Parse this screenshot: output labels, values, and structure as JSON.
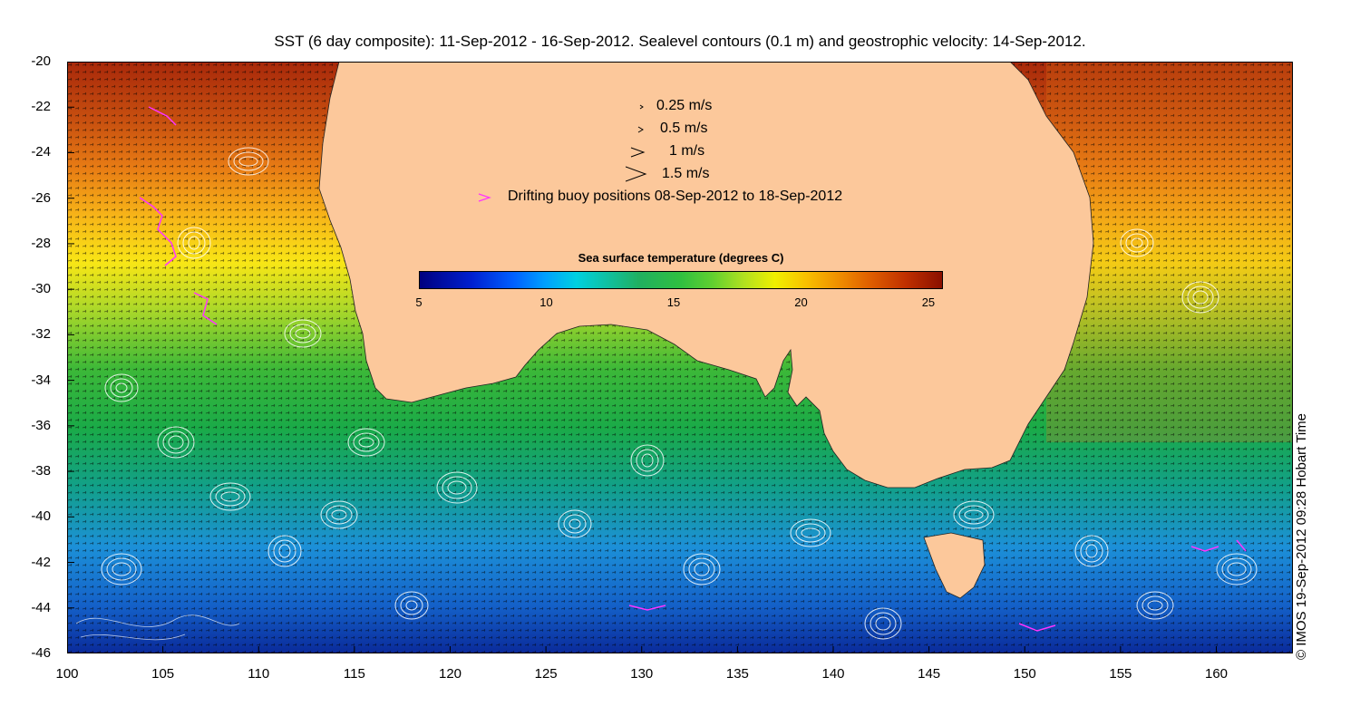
{
  "title": "SST (6 day composite): 11-Sep-2012 - 16-Sep-2012. Sealevel contours (0.1 m) and geostrophic velocity: 14-Sep-2012.",
  "axes": {
    "x_ticks": [
      "100",
      "105",
      "110",
      "115",
      "120",
      "125",
      "130",
      "135",
      "140",
      "145",
      "150",
      "155",
      "160"
    ],
    "y_ticks": [
      "-20",
      "-22",
      "-24",
      "-26",
      "-28",
      "-30",
      "-32",
      "-34",
      "-36",
      "-38",
      "-40",
      "-42",
      "-44",
      "-46"
    ],
    "x_range": [
      100,
      164
    ],
    "y_range": [
      -46,
      -20
    ]
  },
  "legend": {
    "speed_items": [
      {
        "label": "0.25 m/s"
      },
      {
        "label": "0.5 m/s"
      },
      {
        "label": "1 m/s"
      },
      {
        "label": "1.5 m/s"
      }
    ],
    "buoy_label": "Drifting buoy positions 08-Sep-2012 to 18-Sep-2012"
  },
  "colorbar": {
    "title": "Sea surface temperature (degrees C)",
    "ticks": [
      "5",
      "10",
      "15",
      "20",
      "25"
    ],
    "range": [
      5,
      25.5
    ]
  },
  "copyright": "© IMOS 19-Sep-2012 09:28 Hobart Time",
  "colors": {
    "land": "#fcc89b",
    "buoy": "#ff33ff",
    "contour": "#ffffff",
    "arrow": "#000000"
  }
}
